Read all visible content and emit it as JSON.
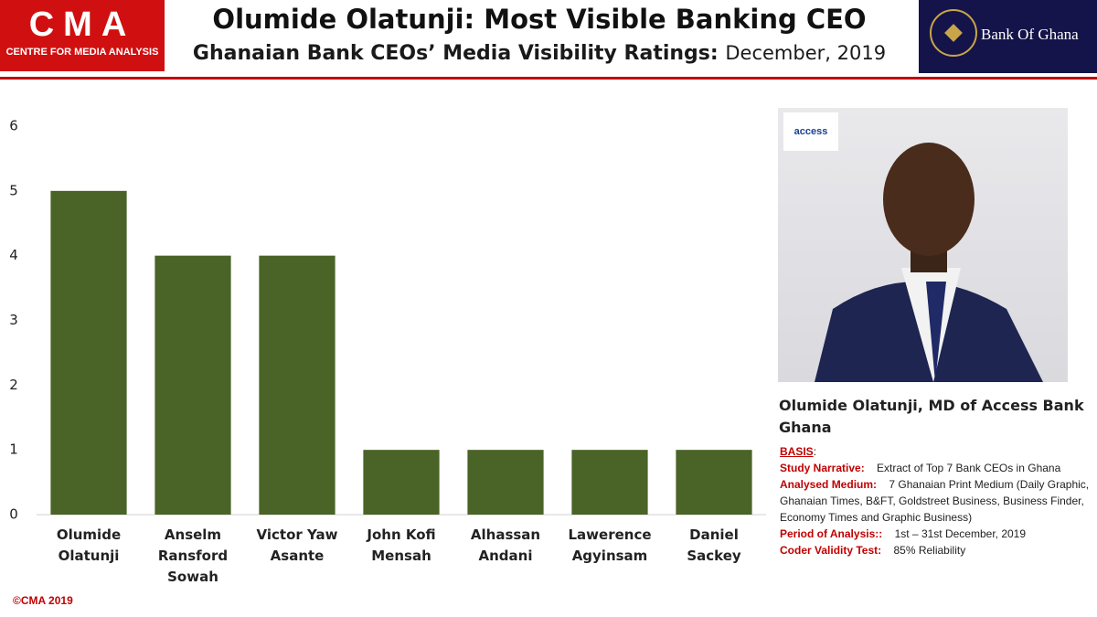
{
  "header": {
    "logo": "CMA",
    "logo_subtitle": "CENTRE FOR MEDIA ANALYSIS",
    "bank": "Bank Of Ghana"
  },
  "chart_data": {
    "type": "bar",
    "title": "Olumide Olatunji: Most Visible Banking CEO",
    "subtitle": "Ghanaian Bank CEOs’ Media Visibility Ratings:",
    "subtitle_date": "December, 2019",
    "categories": [
      "Olumide Olatunji",
      "Anselm Ransford Sowah",
      "Victor Yaw Asante",
      "John Kofi Mensah",
      "Alhassan Andani",
      "Lawerence Agyinsam",
      "Daniel Sackey"
    ],
    "values": [
      5,
      4,
      4,
      1,
      1,
      1,
      1
    ],
    "color": "#4a6327",
    "ylim": [
      0,
      6
    ],
    "yticks": [
      0,
      1,
      2,
      3,
      4,
      5,
      6
    ],
    "grid": false
  },
  "sidebar": {
    "logo": "access",
    "caption": "Olumide Olatunji, MD of Access Bank Ghana",
    "basis_heading": "BASIS",
    "basis": [
      {
        "label": "Study Narrative:",
        "value": "Extract of Top 7 Bank CEOs in Ghana"
      },
      {
        "label": "Analysed Medium:",
        "value": "7 Ghanaian Print Medium (Daily Graphic, Ghanaian Times, B&FT, Goldstreet Business, Business Finder, Economy Times and Graphic Business)"
      },
      {
        "label": "Period of Analysis::",
        "value": "1st – 31st December, 2019"
      },
      {
        "label": "Coder Validity Test:",
        "value": "85% Reliability"
      }
    ]
  },
  "footer": "©CMA 2019"
}
